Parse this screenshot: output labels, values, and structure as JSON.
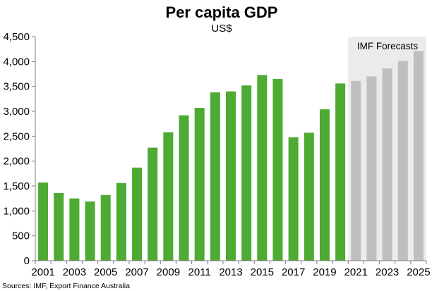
{
  "chart_data": {
    "type": "bar",
    "title": "Per capita GDP",
    "subtitle": "US$",
    "xlabel": "",
    "ylabel": "",
    "ylim": [
      0,
      4500
    ],
    "yticks": [
      0,
      500,
      1000,
      1500,
      2000,
      2500,
      3000,
      3500,
      4000,
      4500
    ],
    "ytick_labels": [
      "0",
      "500",
      "1,000",
      "1,500",
      "2,000",
      "2,500",
      "3,000",
      "3,500",
      "4,000",
      "4,500"
    ],
    "categories": [
      "2001",
      "2002",
      "2003",
      "2004",
      "2005",
      "2006",
      "2007",
      "2008",
      "2009",
      "2010",
      "2011",
      "2012",
      "2013",
      "2014",
      "2015",
      "2016",
      "2017",
      "2018",
      "2019",
      "2020",
      "2021",
      "2022",
      "2023",
      "2024",
      "2025"
    ],
    "xtick_labels": [
      "2001",
      "2003",
      "2005",
      "2007",
      "2009",
      "2011",
      "2013",
      "2015",
      "2017",
      "2019",
      "2021",
      "2023",
      "2025"
    ],
    "series": [
      {
        "values": [
          1570,
          1360,
          1250,
          1190,
          1320,
          1560,
          1870,
          2270,
          2580,
          2920,
          3070,
          3380,
          3400,
          3520,
          3730,
          3650,
          2480,
          2570,
          3040,
          3560,
          3610,
          3700,
          3860,
          4010,
          4210
        ]
      }
    ],
    "forecast": {
      "label": "IMF Forecasts",
      "start_category": "2021",
      "end_category": "2025"
    },
    "grid": false,
    "legend": "none",
    "colors": {
      "actual": "#4daa32",
      "forecast": "#bfbfbf",
      "forecast_band": "#ebebeb"
    },
    "source_note": "Sources: IMF, Export Finance Australia"
  }
}
